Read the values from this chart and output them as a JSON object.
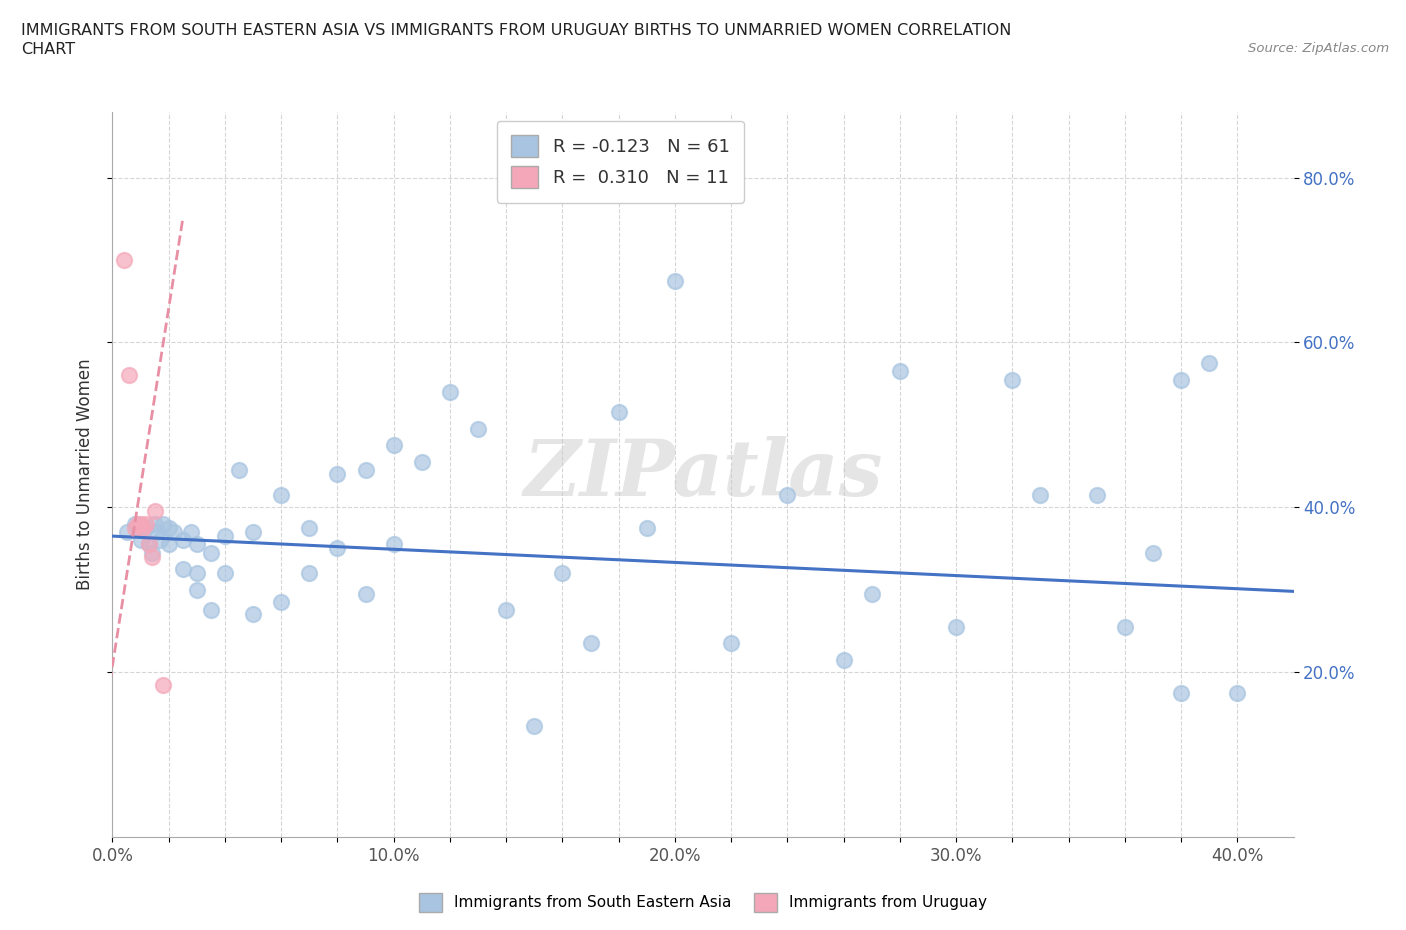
{
  "title_line1": "IMMIGRANTS FROM SOUTH EASTERN ASIA VS IMMIGRANTS FROM URUGUAY BIRTHS TO UNMARRIED WOMEN CORRELATION",
  "title_line2": "CHART",
  "source": "Source: ZipAtlas.com",
  "ylabel": "Births to Unmarried Women",
  "xlim": [
    0.0,
    0.42
  ],
  "ylim": [
    0.0,
    0.88
  ],
  "xtick_labels": [
    "0.0%",
    "",
    "",
    "",
    "",
    "10.0%",
    "",
    "",
    "",
    "",
    "20.0%",
    "",
    "",
    "",
    "",
    "30.0%",
    "",
    "",
    "",
    "",
    "40.0%"
  ],
  "xtick_vals": [
    0.0,
    0.02,
    0.04,
    0.06,
    0.08,
    0.1,
    0.12,
    0.14,
    0.16,
    0.18,
    0.2,
    0.22,
    0.24,
    0.26,
    0.28,
    0.3,
    0.32,
    0.34,
    0.36,
    0.38,
    0.4
  ],
  "ytick_labels": [
    "20.0%",
    "40.0%",
    "60.0%",
    "80.0%"
  ],
  "ytick_vals": [
    0.2,
    0.4,
    0.6,
    0.8
  ],
  "blue_color": "#a8c4e0",
  "pink_color": "#f4a7b9",
  "blue_line_color": "#4472c4",
  "pink_line_color": "#e88fa4",
  "r_blue": -0.123,
  "n_blue": 61,
  "r_pink": 0.31,
  "n_pink": 11,
  "legend_label_blue": "Immigrants from South Eastern Asia",
  "legend_label_pink": "Immigrants from Uruguay",
  "watermark": "ZIPatlas",
  "blue_scatter_x": [
    0.005,
    0.008,
    0.01,
    0.012,
    0.013,
    0.014,
    0.015,
    0.016,
    0.017,
    0.018,
    0.02,
    0.02,
    0.022,
    0.025,
    0.025,
    0.028,
    0.03,
    0.03,
    0.03,
    0.035,
    0.035,
    0.04,
    0.04,
    0.045,
    0.05,
    0.05,
    0.06,
    0.06,
    0.07,
    0.07,
    0.08,
    0.08,
    0.09,
    0.09,
    0.1,
    0.1,
    0.11,
    0.12,
    0.13,
    0.14,
    0.15,
    0.16,
    0.17,
    0.18,
    0.19,
    0.2,
    0.22,
    0.24,
    0.26,
    0.27,
    0.28,
    0.3,
    0.32,
    0.33,
    0.35,
    0.36,
    0.37,
    0.38,
    0.38,
    0.39,
    0.4
  ],
  "blue_scatter_y": [
    0.37,
    0.38,
    0.36,
    0.375,
    0.355,
    0.345,
    0.38,
    0.37,
    0.36,
    0.38,
    0.375,
    0.355,
    0.37,
    0.36,
    0.325,
    0.37,
    0.355,
    0.32,
    0.3,
    0.345,
    0.275,
    0.365,
    0.32,
    0.445,
    0.37,
    0.27,
    0.415,
    0.285,
    0.375,
    0.32,
    0.44,
    0.35,
    0.445,
    0.295,
    0.475,
    0.355,
    0.455,
    0.54,
    0.495,
    0.275,
    0.135,
    0.32,
    0.235,
    0.515,
    0.375,
    0.675,
    0.235,
    0.415,
    0.215,
    0.295,
    0.565,
    0.255,
    0.555,
    0.415,
    0.415,
    0.255,
    0.345,
    0.175,
    0.555,
    0.575,
    0.175
  ],
  "pink_scatter_x": [
    0.004,
    0.006,
    0.008,
    0.009,
    0.01,
    0.011,
    0.012,
    0.013,
    0.014,
    0.015,
    0.018
  ],
  "pink_scatter_y": [
    0.7,
    0.56,
    0.375,
    0.38,
    0.38,
    0.375,
    0.38,
    0.355,
    0.34,
    0.395,
    0.185
  ],
  "blue_trend_x": [
    0.0,
    0.42
  ],
  "blue_trend_y": [
    0.365,
    0.298
  ],
  "pink_trend_x": [
    -0.005,
    0.025
  ],
  "pink_trend_y": [
    0.1,
    0.75
  ]
}
